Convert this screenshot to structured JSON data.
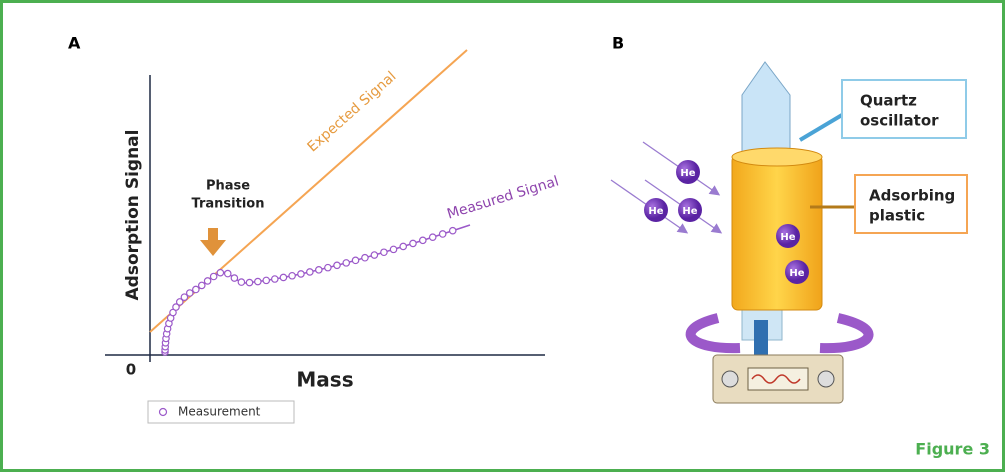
{
  "panel_a": {
    "label": "A",
    "y_axis_label": "Adsorption Signal",
    "x_axis_label": "Mass",
    "origin_label": "0",
    "annotation": [
      "Phase",
      "Transition"
    ],
    "expected_label": "Expected Signal",
    "measured_label": "Measured Signal",
    "legend": "Measurement"
  },
  "panel_b": {
    "label": "B",
    "callouts": [
      [
        "Quartz",
        "oscillator"
      ],
      [
        "Adsorbing",
        "plastic"
      ]
    ],
    "atoms": [
      "He",
      "He",
      "He",
      "He",
      "He"
    ]
  },
  "figure_label": "Figure 3"
}
